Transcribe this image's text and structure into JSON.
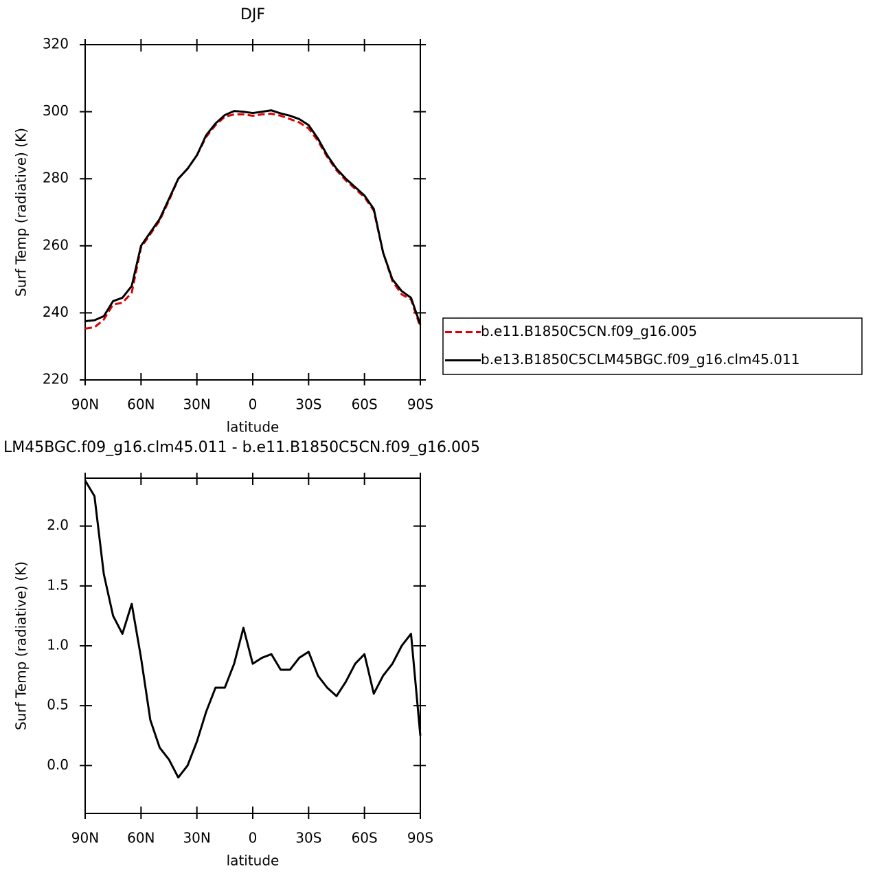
{
  "chart_data": [
    {
      "type": "line",
      "title": "DJF",
      "xlabel": "latitude",
      "ylabel": "Surf Temp (radiative) (K)",
      "x": [
        90,
        85,
        80,
        75,
        70,
        65,
        60,
        55,
        50,
        45,
        40,
        35,
        30,
        25,
        20,
        15,
        10,
        5,
        0,
        -5,
        -10,
        -15,
        -20,
        -25,
        -30,
        -35,
        -40,
        -45,
        -50,
        -55,
        -60,
        -65,
        -70,
        -75,
        -80,
        -85,
        -90
      ],
      "series": [
        {
          "name": "b.e11.B1850C5CN.f09_g16.005",
          "color": "#e00000",
          "dash": "dashed",
          "values": [
            235.3,
            235.7,
            238,
            242.5,
            243,
            246,
            259.5,
            263.5,
            267.5,
            273.5,
            280,
            283,
            287,
            292.5,
            296,
            298.5,
            299.2,
            299.2,
            298.8,
            299.2,
            299.4,
            298.8,
            297.8,
            296.8,
            295,
            291.3,
            286.5,
            282.5,
            279.5,
            277,
            274.5,
            270.5,
            258,
            249.5,
            245.5,
            244,
            235.8
          ]
        },
        {
          "name": "b.e13.B1850C5CLM45BGC.f09_g16.clm45.011",
          "color": "#000000",
          "dash": "solid",
          "values": [
            237.5,
            237.8,
            239,
            243.5,
            244.5,
            248,
            260,
            264,
            268,
            274,
            280,
            283,
            287,
            293,
            296.5,
            299,
            300.2,
            300,
            299.6,
            300,
            300.4,
            299.5,
            298.8,
            297.8,
            296,
            292,
            287,
            283,
            280,
            277.5,
            275,
            271,
            258,
            250,
            246.5,
            244.5,
            236.5
          ]
        }
      ],
      "xlim": [
        90,
        -90
      ],
      "xticks": [
        {
          "value": 90,
          "label": "90N"
        },
        {
          "value": 60,
          "label": "60N"
        },
        {
          "value": 30,
          "label": "30N"
        },
        0,
        {
          "value": -30,
          "label": "30S"
        },
        {
          "value": -60,
          "label": "60S"
        },
        {
          "value": -90,
          "label": "90S"
        }
      ],
      "ylim": [
        220,
        320
      ],
      "yticks": [
        220,
        240,
        260,
        280,
        300,
        320
      ],
      "legend": "right"
    },
    {
      "type": "line",
      "title": "LM45BGC.f09_g16.clm45.011 - b.e11.B1850C5CN.f09_g16.005",
      "xlabel": "latitude",
      "ylabel": "Surf Temp (radiative) (K)",
      "x": [
        90,
        85,
        80,
        75,
        70,
        65,
        60,
        55,
        50,
        45,
        40,
        35,
        30,
        25,
        20,
        15,
        10,
        5,
        0,
        -5,
        -10,
        -15,
        -20,
        -25,
        -30,
        -35,
        -40,
        -45,
        -50,
        -55,
        -60,
        -65,
        -70,
        -75,
        -80,
        -85,
        -90
      ],
      "series": [
        {
          "color": "#000000",
          "dash": "solid",
          "values": [
            2.38,
            2.25,
            1.6,
            1.25,
            1.1,
            1.35,
            0.9,
            0.38,
            0.15,
            0.05,
            -0.1,
            0.0,
            0.2,
            0.45,
            0.65,
            0.65,
            0.85,
            1.15,
            0.85,
            0.9,
            0.93,
            0.8,
            0.8,
            0.9,
            0.95,
            0.75,
            0.65,
            0.58,
            0.7,
            0.85,
            0.93,
            0.6,
            0.75,
            0.85,
            1.0,
            1.1,
            0.25
          ]
        }
      ],
      "xlim": [
        90,
        -90
      ],
      "xticks": [
        {
          "value": 90,
          "label": "90N"
        },
        {
          "value": 60,
          "label": "60N"
        },
        {
          "value": 30,
          "label": "30N"
        },
        0,
        {
          "value": -30,
          "label": "30S"
        },
        {
          "value": -60,
          "label": "60S"
        },
        {
          "value": -90,
          "label": "90S"
        }
      ],
      "ylim": [
        -0.4,
        2.4
      ],
      "yticks": [
        {
          "value": 0,
          "label": "0.0"
        },
        0.5,
        {
          "value": 1,
          "label": "1.0"
        },
        1.5,
        {
          "value": 2,
          "label": "2.0"
        }
      ]
    }
  ]
}
